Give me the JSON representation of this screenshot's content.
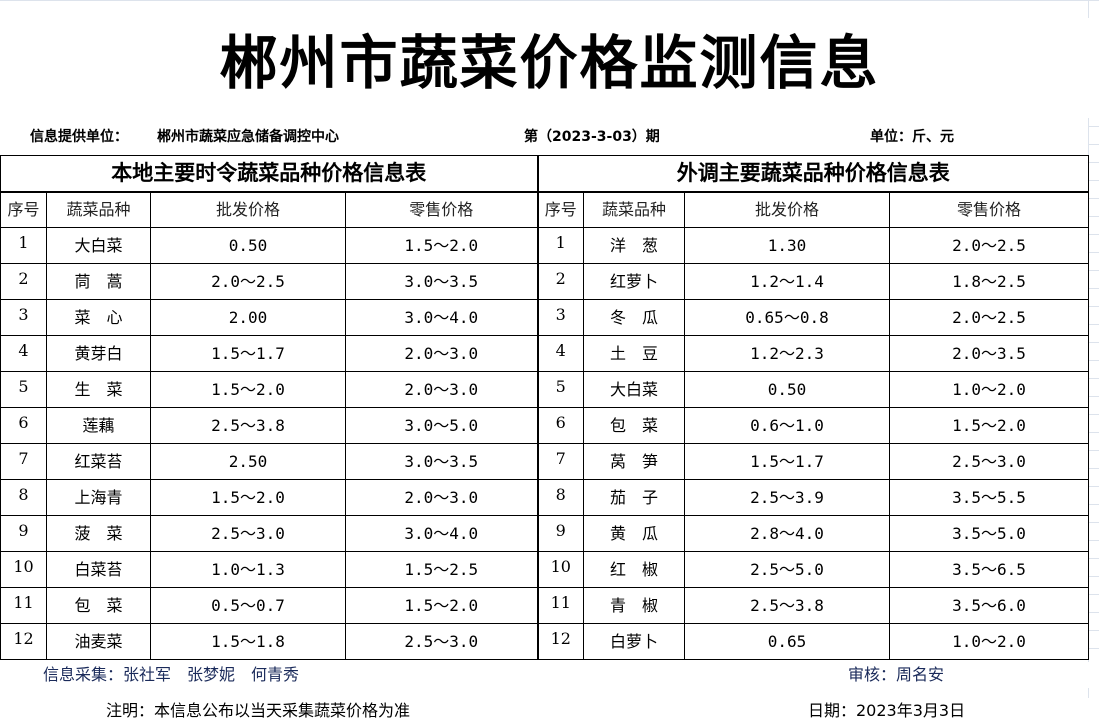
{
  "title": "郴州市蔬菜价格监测信息",
  "info": {
    "provider_label": "信息提供单位：",
    "provider": "郴州市蔬菜应急储备调控中心",
    "period": "第（2023-3-03）期",
    "unit": "单位：斤、元"
  },
  "local": {
    "title": "本地主要时令蔬菜品种价格信息表",
    "headers": [
      "序号",
      "蔬菜品种",
      "批发价格",
      "零售价格"
    ],
    "rows": [
      [
        "1",
        "大白菜",
        "0.50",
        "1.5～2.0"
      ],
      [
        "2",
        "茼　蒿",
        "2.0～2.5",
        "3.0～3.5"
      ],
      [
        "3",
        "菜　心",
        "2.00",
        "3.0～4.0"
      ],
      [
        "4",
        "黄芽白",
        "1.5～1.7",
        "2.0～3.0"
      ],
      [
        "5",
        "生　菜",
        "1.5～2.0",
        "2.0～3.0"
      ],
      [
        "6",
        "莲藕",
        "2.5～3.8",
        "3.0～5.0"
      ],
      [
        "7",
        "红菜苔",
        "2.50",
        "3.0～3.5"
      ],
      [
        "8",
        "上海青",
        "1.5～2.0",
        "2.0～3.0"
      ],
      [
        "9",
        "菠　菜",
        "2.5～3.0",
        "3.0～4.0"
      ],
      [
        "10",
        "白菜苔",
        "1.0～1.3",
        "1.5～2.5"
      ],
      [
        "11",
        "包　菜",
        "0.5～0.7",
        "1.5～2.0"
      ],
      [
        "12",
        "油麦菜",
        "1.5～1.8",
        "2.5～3.0"
      ]
    ]
  },
  "external": {
    "title": "外调主要蔬菜品种价格信息表",
    "headers": [
      "序号",
      "蔬菜品种",
      "批发价格",
      "零售价格"
    ],
    "rows": [
      [
        "1",
        "洋　葱",
        "1.30",
        "2.0～2.5"
      ],
      [
        "2",
        "红萝卜",
        "1.2～1.4",
        "1.8～2.5"
      ],
      [
        "3",
        "冬　瓜",
        "0.65～0.8",
        "2.0～2.5"
      ],
      [
        "4",
        "土　豆",
        "1.2～2.3",
        "2.0～3.5"
      ],
      [
        "5",
        "大白菜",
        "0.50",
        "1.0～2.0"
      ],
      [
        "6",
        "包　菜",
        "0.6～1.0",
        "1.5～2.0"
      ],
      [
        "7",
        "莴　笋",
        "1.5～1.7",
        "2.5～3.0"
      ],
      [
        "8",
        "茄　子",
        "2.5～3.9",
        "3.5～5.5"
      ],
      [
        "9",
        "黄　瓜",
        "2.8～4.0",
        "3.5～5.0"
      ],
      [
        "10",
        "红　椒",
        "2.5～5.0",
        "3.5～6.5"
      ],
      [
        "11",
        "青　椒",
        "2.5～3.8",
        "3.5～6.0"
      ],
      [
        "12",
        "白萝卜",
        "0.65",
        "1.0～2.0"
      ]
    ]
  },
  "footer": {
    "collectors": "信息采集：张社军　张梦妮　何青秀",
    "reviewer": "审核：周名安",
    "note": "注明：本信息公布以当天采集蔬菜价格为准",
    "date": "日期：2023年3月3日"
  }
}
